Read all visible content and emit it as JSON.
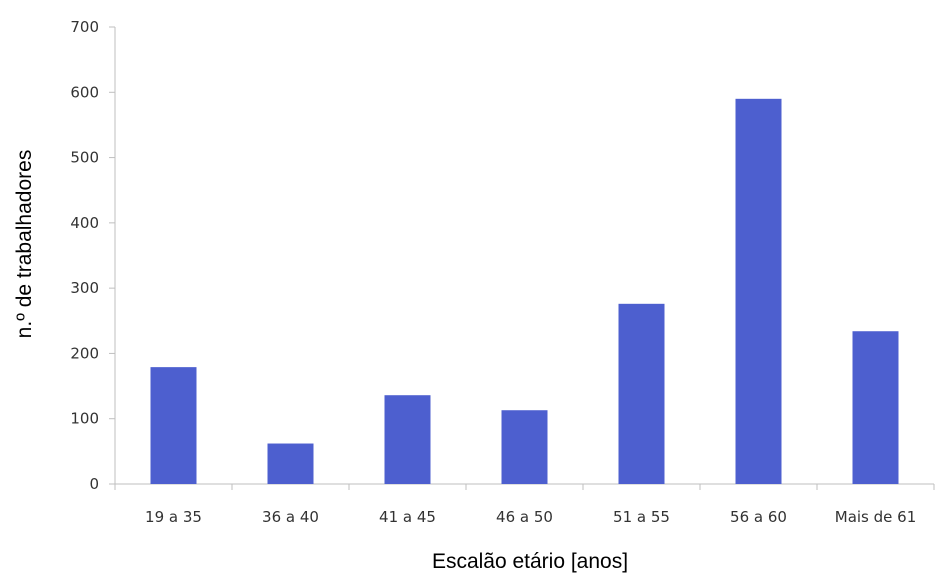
{
  "chart_data": {
    "type": "bar",
    "title": "",
    "xlabel": "Escalão etário [anos]",
    "ylabel": "n.º de trabalhadores",
    "categories": [
      "19 a 35",
      "36 a 40",
      "41 a 45",
      "46 a 50",
      "51 a 55",
      "56 a 60",
      "Mais de 61"
    ],
    "values": [
      179,
      62,
      136,
      113,
      276,
      590,
      234
    ],
    "ylim": [
      0,
      700
    ],
    "yticks": [
      0,
      100,
      200,
      300,
      400,
      500,
      600,
      700
    ],
    "grid": false,
    "legend": "none",
    "bar_color": "#4d5fcf"
  }
}
